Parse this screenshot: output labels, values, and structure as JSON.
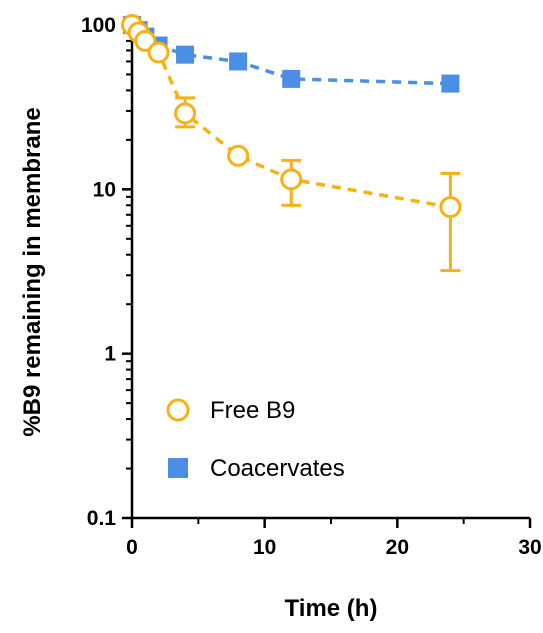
{
  "chart_data": {
    "type": "line",
    "title": "",
    "xlabel": "Time (h)",
    "ylabel": "%B9 remaining in membrane",
    "xlim": [
      0,
      30
    ],
    "ylim": [
      0.1,
      100
    ],
    "yscale": "log",
    "xticks": [
      0,
      10,
      20,
      30
    ],
    "xtick_labels": [
      "0",
      "10",
      "20",
      "30"
    ],
    "yticks": [
      0.1,
      1,
      10,
      100
    ],
    "ytick_labels": [
      "0.1",
      "1",
      "10",
      "100"
    ],
    "grid": false,
    "legend_position": "bottom-left",
    "series": [
      {
        "name": "Free B9",
        "color": "#F5B212",
        "marker": "open-circle",
        "line_style": "dashed",
        "x": [
          0,
          0.5,
          1,
          2,
          4,
          8,
          12,
          24
        ],
        "y": [
          100,
          90,
          80,
          68,
          29,
          16,
          11.5,
          7.8
        ],
        "error_low": [
          null,
          null,
          null,
          null,
          24,
          null,
          8,
          3.2
        ],
        "error_high": [
          null,
          null,
          null,
          null,
          36,
          null,
          15,
          12.5
        ]
      },
      {
        "name": "Coacervates",
        "color": "#4A8EE6",
        "marker": "filled-square",
        "line_style": "dashed",
        "x": [
          0,
          0.5,
          1,
          2,
          4,
          8,
          12,
          24
        ],
        "y": [
          100,
          93,
          85,
          75,
          66,
          60,
          47,
          44
        ]
      }
    ]
  }
}
